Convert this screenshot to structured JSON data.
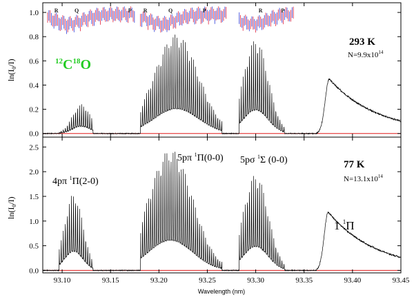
{
  "chart_data": {
    "type": "line",
    "x_label": "Wavelength (nm)",
    "x_range": [
      93.08,
      93.45
    ],
    "x_ticks": [
      "93.10",
      "93.15",
      "93.20",
      "93.25",
      "93.30",
      "93.35",
      "93.40",
      "93.45"
    ],
    "panels": [
      {
        "id": "top",
        "temperature": "293 K",
        "column_density": "N=9.9x10",
        "column_density_exp": "14",
        "isotope_mass1": "12",
        "isotope_c": "C",
        "isotope_mass2": "18",
        "isotope_o": "O",
        "isotope_color": "#22cc22",
        "ylabel_main": "ln(I",
        "ylabel_sub": "0",
        "ylabel_end": "/I)",
        "y_range": [
          -0.03,
          1.08
        ],
        "y_ticks": [
          "0.0",
          "0.2",
          "0.4",
          "0.6",
          "0.8",
          "1.0"
        ],
        "branch_labels": [
          {
            "text": "R",
            "x": 93.094
          },
          {
            "text": "Q",
            "x": 93.115
          },
          {
            "text": "P",
            "x": 93.17
          },
          {
            "text": "R",
            "x": 93.186
          },
          {
            "text": "Q",
            "x": 93.212
          },
          {
            "text": "P",
            "x": 93.247
          },
          {
            "text": "R",
            "x": 93.305
          },
          {
            "text": "P",
            "x": 93.328
          }
        ],
        "bands": [
          {
            "name": "4p pi (2-0)",
            "x_start": 93.097,
            "x_end": 93.132,
            "envelope_peak": 0.24,
            "peak_x": 93.12
          },
          {
            "name": "5p pi (0-0)",
            "x_start": 93.181,
            "x_end": 93.265,
            "envelope_peak": 0.82,
            "peak_x": 93.218
          },
          {
            "name": "5p sigma (0-0)",
            "x_start": 93.283,
            "x_end": 93.33,
            "envelope_peak": 0.78,
            "peak_x": 93.3
          },
          {
            "name": "1 1Pi",
            "x_start": 93.363,
            "x_end": 93.45,
            "envelope_peak": 0.45,
            "peak_x": 93.376
          }
        ]
      },
      {
        "id": "bottom",
        "temperature": "77 K",
        "column_density": "N=13.1x10",
        "column_density_exp": "14",
        "ylabel_main": "ln(I",
        "ylabel_sub": "0",
        "ylabel_end": "/I)",
        "y_range": [
          -0.05,
          2.7
        ],
        "y_ticks": [
          "0.0",
          "0.5",
          "1.0",
          "1.5",
          "2.0",
          "2.5"
        ],
        "band_labels": [
          {
            "text": "4pπ ",
            "sup": "1",
            "tail": "Π(2-0)"
          },
          {
            "text": "5pπ ",
            "sup": "1",
            "tail": "Π(0-0)"
          },
          {
            "text": "5pσ ",
            "sup": "1",
            "tail": "Σ (0-0)"
          },
          {
            "text": "1 ",
            "sup": "1",
            "tail": "Π"
          }
        ],
        "bands": [
          {
            "name": "4p pi (2-0)",
            "x_start": 93.097,
            "x_end": 93.132,
            "envelope_peak": 1.55,
            "peak_x": 93.112
          },
          {
            "name": "5p pi (0-0)",
            "x_start": 93.181,
            "x_end": 93.265,
            "envelope_peak": 2.45,
            "peak_x": 93.212
          },
          {
            "name": "5p sigma (0-0)",
            "x_start": 93.283,
            "x_end": 93.33,
            "envelope_peak": 1.95,
            "peak_x": 93.3
          },
          {
            "name": "1 1Pi",
            "x_start": 93.363,
            "x_end": 93.45,
            "envelope_peak": 1.18,
            "peak_x": 93.375
          }
        ]
      }
    ],
    "colors": {
      "trace": "#000000",
      "baseline": "#e01818",
      "model_red": "#e0203a",
      "model_blue": "#2a3ad8",
      "axis": "#000000"
    }
  }
}
